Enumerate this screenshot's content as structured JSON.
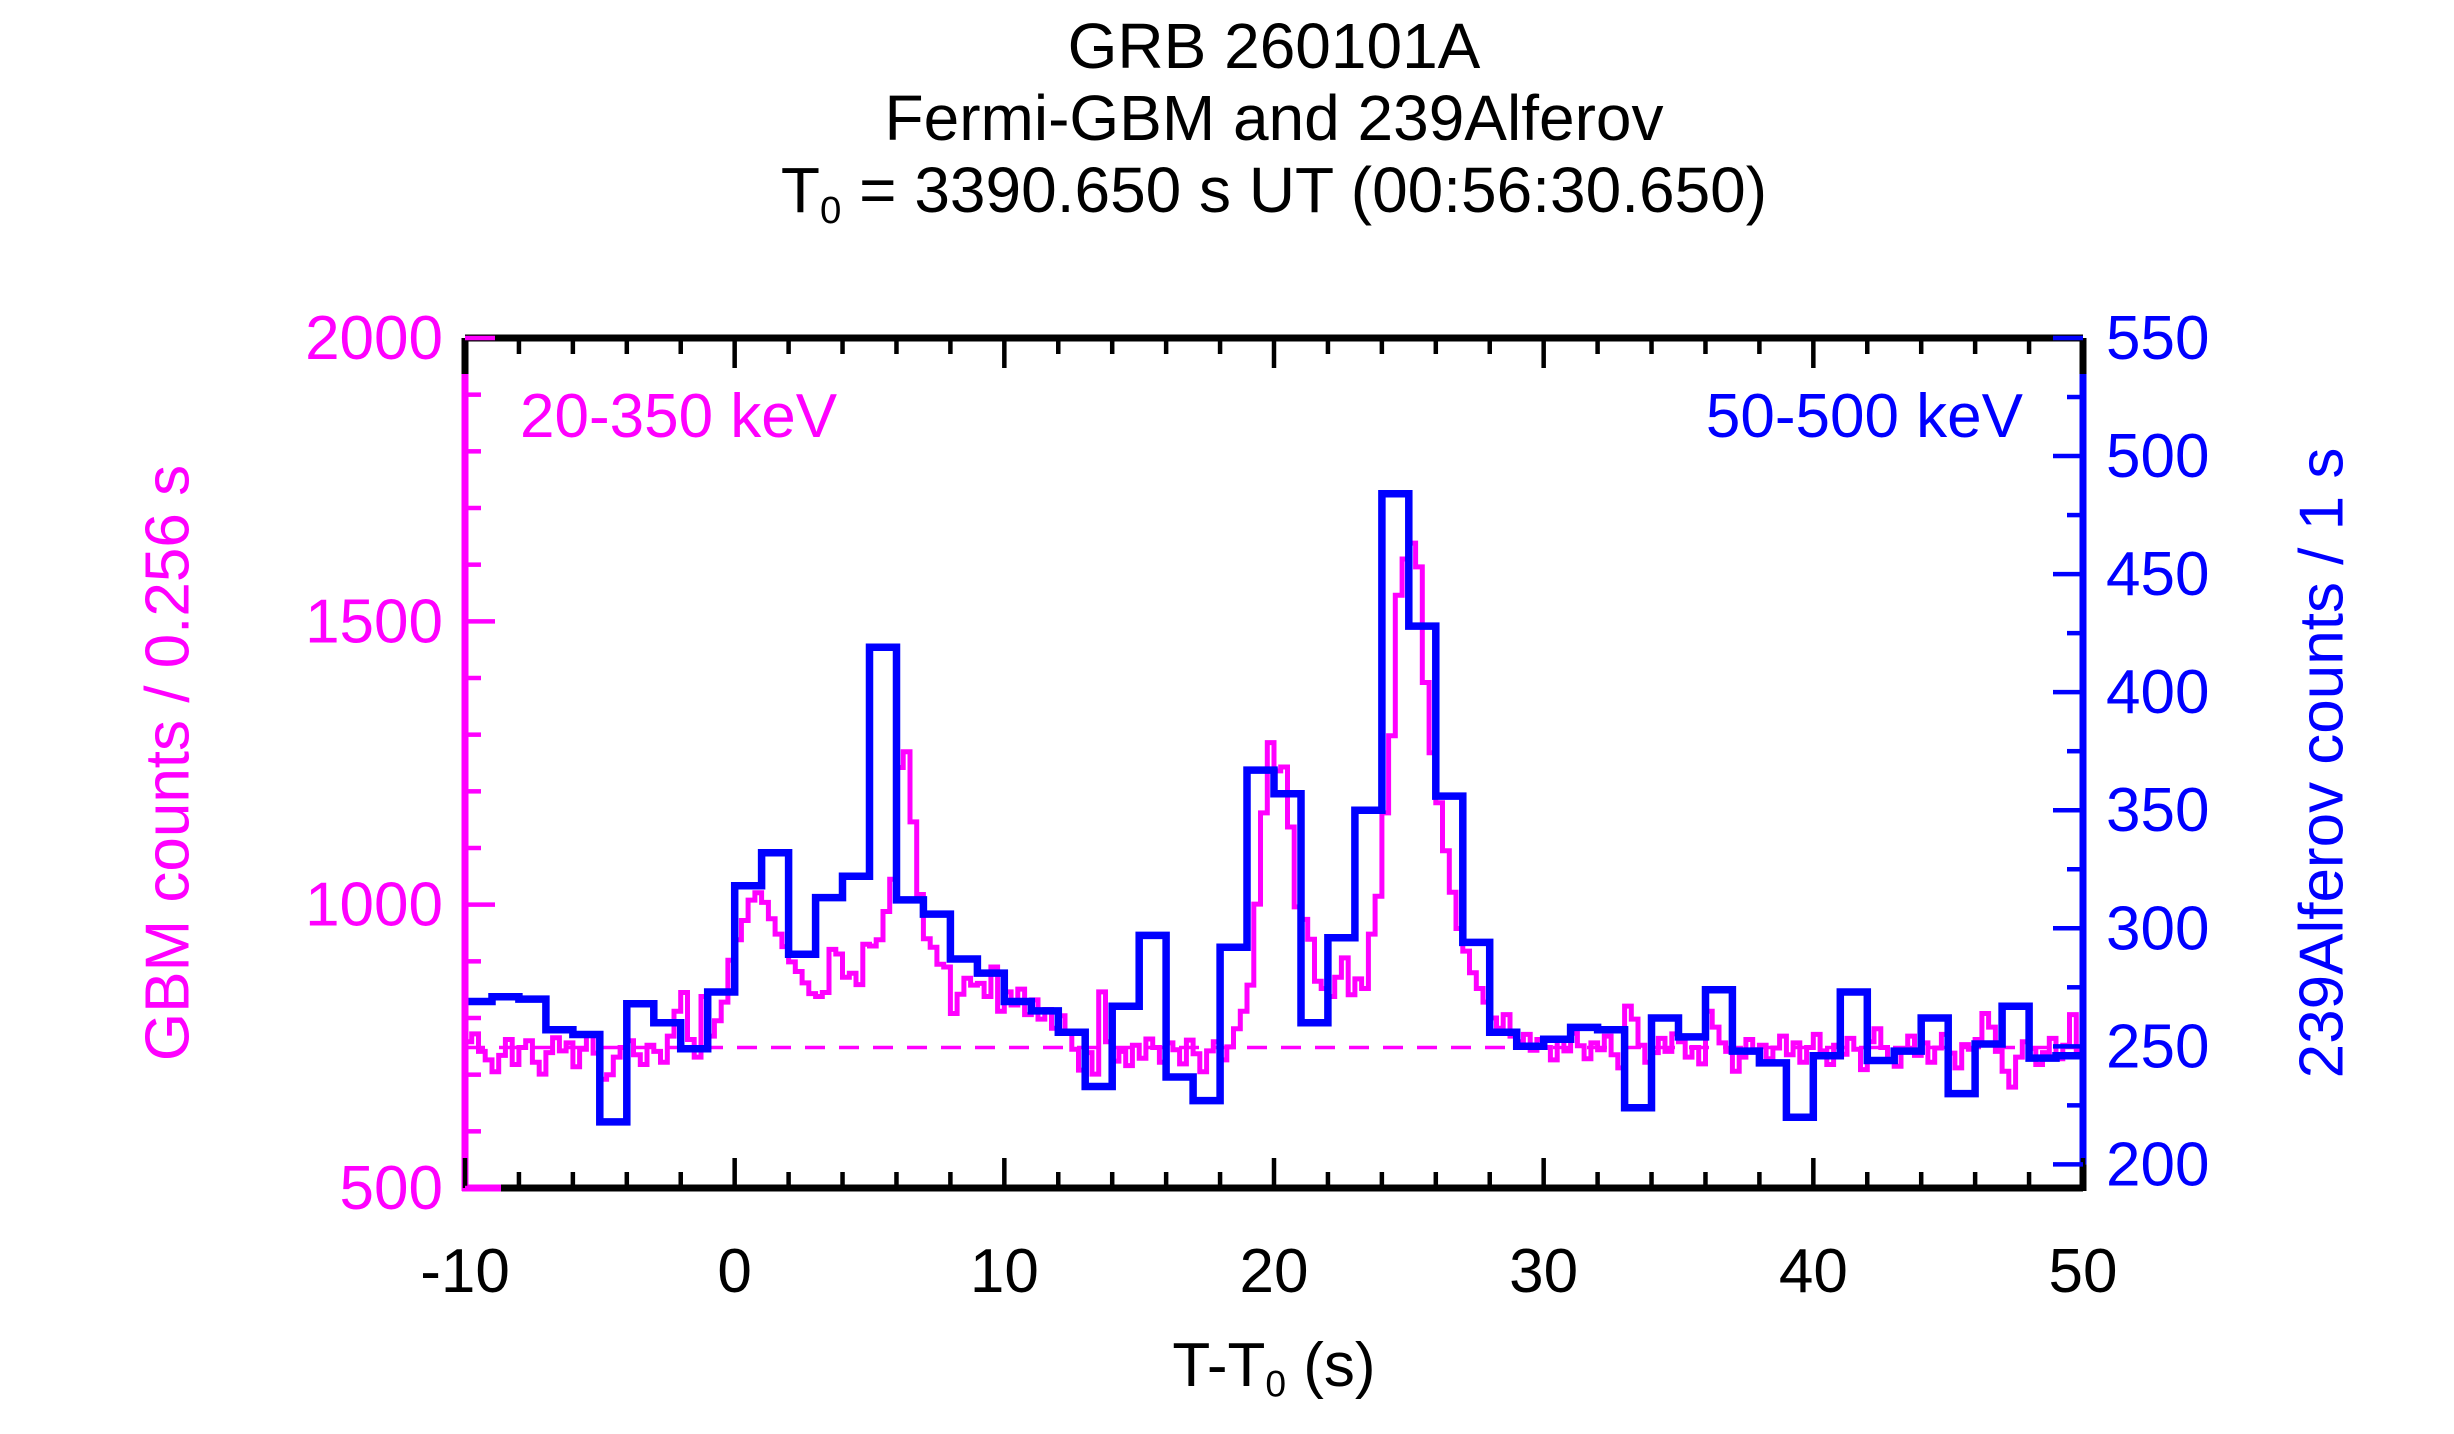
{
  "title": {
    "line1": "GRB 260101A",
    "line2": "Fermi-GBM and 239Alferov",
    "t0_symbol": "T",
    "t0_sub": "0",
    "t0_rest": " = 3390.650 s UT (00:56:30.650)"
  },
  "legend": {
    "gbm": {
      "label": "20-350 keV",
      "color": "#FF00FF"
    },
    "alferov": {
      "label": "50-500 keV",
      "color": "#0000FF"
    }
  },
  "axes": {
    "x": {
      "title_main": "T-T",
      "title_sub": "0",
      "title_suffix": " (s)",
      "min": -10,
      "max": 50,
      "major_ticks": [
        -10,
        0,
        10,
        20,
        30,
        40,
        50
      ],
      "minor_step": 2,
      "color": "#000000"
    },
    "y_left": {
      "title": "GBM counts / 0.256 s",
      "color": "#FF00FF",
      "min": 500,
      "max": 2000,
      "major_ticks": [
        500,
        1000,
        1500,
        2000
      ],
      "minor_step": 100
    },
    "y_right": {
      "title": "239Alferov counts / 1 s",
      "color": "#0000FF",
      "min": 190,
      "max": 550,
      "major_ticks": [
        200,
        250,
        300,
        350,
        400,
        450,
        500,
        550
      ],
      "minor_step": 25
    }
  },
  "chart_data": {
    "type": "line",
    "subtype": "step-histogram light curves",
    "title": "GRB 260101A — Fermi-GBM and 239Alferov",
    "xlabel": "T-T0 (s)",
    "ylabel_left": "GBM counts / 0.256 s",
    "ylabel_right": "239Alferov counts / 1 s",
    "xlim": [
      -10,
      50
    ],
    "ylim_left": [
      500,
      2000
    ],
    "ylim_right": [
      190,
      550
    ],
    "grid": false,
    "legend_position": "inside-top",
    "background_line": {
      "axis": "left",
      "value": 748,
      "style": "dashed",
      "color": "#FF00FF"
    },
    "series": [
      {
        "name": "Fermi-GBM 20-350 keV",
        "axis": "left",
        "color": "#FF00FF",
        "bin_width_s": 0.25,
        "t_start": -10,
        "values": [
          758,
          772,
          741,
          726,
          705,
          734,
          762,
          718,
          748,
          760,
          722,
          701,
          739,
          765,
          742,
          756,
          714,
          745,
          772,
          738,
          692,
          700,
          731,
          748,
          760,
          735,
          718,
          752,
          741,
          722,
          768,
          812,
          845,
          762,
          731,
          838,
          768,
          795,
          828,
          902,
          938,
          972,
          1008,
          1021,
          1004,
          975,
          948,
          926,
          899,
          882,
          862,
          843,
          838,
          845,
          921,
          913,
          872,
          879,
          859,
          930,
          927,
          938,
          988,
          1045,
          1242,
          1270,
          1146,
          1018,
          940,
          925,
          895,
          890,
          808,
          842,
          870,
          858,
          861,
          838,
          890,
          812,
          846,
          823,
          851,
          806,
          832,
          798,
          815,
          782,
          804,
          776,
          745,
          708,
          739,
          701,
          846,
          758,
          724,
          741,
          716,
          752,
          729,
          763,
          748,
          722,
          756,
          744,
          719,
          761,
          737,
          705,
          742,
          758,
          726,
          749,
          781,
          812,
          858,
          1001,
          1162,
          1286,
          1236,
          1243,
          1137,
          996,
          974,
          939,
          865,
          852,
          838,
          872,
          906,
          841,
          869,
          852,
          948,
          1015,
          1162,
          1298,
          1546,
          1610,
          1638,
          1596,
          1392,
          1268,
          1180,
          1095,
          1022,
          958,
          918,
          880,
          852,
          828,
          800,
          782,
          806,
          768,
          758,
          771,
          743,
          762,
          748,
          726,
          761,
          742,
          773,
          751,
          728,
          756,
          744,
          768,
          735,
          712,
          821,
          798,
          752,
          722,
          739,
          764,
          741,
          772,
          758,
          731,
          748,
          719,
          812,
          784,
          756,
          741,
          706,
          731,
          762,
          744,
          752,
          728,
          747,
          768,
          735,
          756,
          722,
          748,
          771,
          742,
          718,
          752,
          736,
          764,
          745,
          709,
          758,
          781,
          748,
          726,
          715,
          742,
          768,
          734,
          756,
          722,
          747,
          771,
          738,
          712,
          753,
          745,
          762,
          808,
          784,
          741,
          706,
          678,
          731,
          758,
          746,
          718,
          739,
          764,
          728,
          752,
          806,
          741
        ]
      },
      {
        "name": "239Alferov 50-500 keV",
        "axis": "right",
        "color": "#0000FF",
        "bin_width_s": 1.0,
        "t_start": -10,
        "values": [
          269,
          271,
          270,
          257,
          255,
          218,
          268,
          260,
          249,
          273,
          318,
          332,
          289,
          313,
          322,
          419,
          312,
          306,
          287,
          281,
          269,
          265,
          256,
          233,
          267,
          297,
          237,
          227,
          292,
          367,
          357,
          260,
          296,
          350,
          484,
          428,
          356,
          294,
          256,
          250,
          253,
          258,
          257,
          224,
          262,
          254,
          274,
          248,
          243,
          220,
          246,
          273,
          244,
          248,
          262,
          230,
          251,
          267,
          245,
          246
        ]
      }
    ]
  }
}
